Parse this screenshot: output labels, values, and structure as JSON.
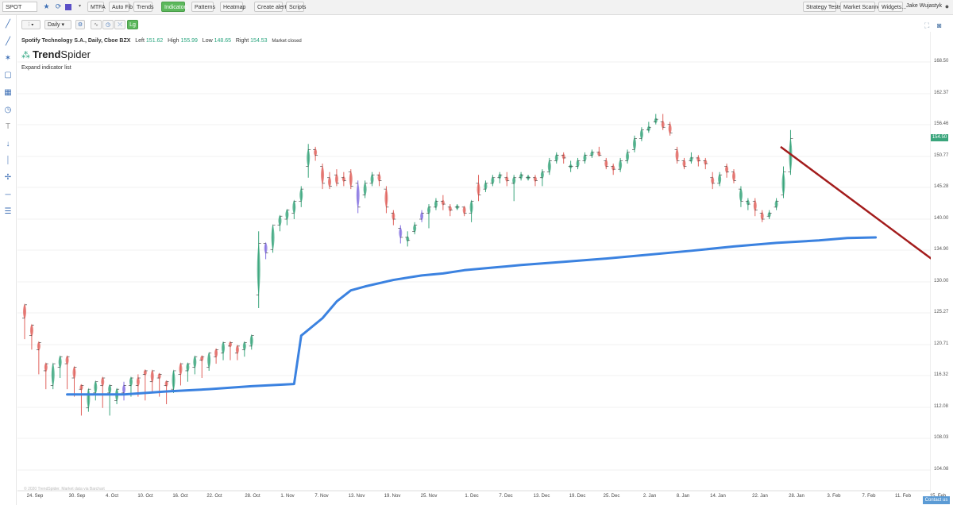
{
  "toolbar": {
    "symbol": "SPOT",
    "buttons": [
      "MTFA",
      "Auto Fib",
      "Trends",
      "Indicators",
      "Patterns",
      "Heatmap",
      "Create alert",
      "Scripts"
    ],
    "active": "Indicators",
    "right_buttons": [
      "Strategy Tester",
      "Market Scanner",
      "Widgets..."
    ],
    "user": "Jake Wujastyk"
  },
  "chart_controls": {
    "interval": "Daily"
  },
  "header": {
    "name": "Spotify Technology S.A., Daily, Cboe BZX",
    "left_label": "Left",
    "left": "151.62",
    "high_label": "High",
    "high": "155.99",
    "low_label": "Low",
    "low": "148.65",
    "right_label": "Right",
    "right": "154.53",
    "status": "Market closed"
  },
  "logo": {
    "trend": "Trend",
    "spider": "Spider"
  },
  "expand_label": "Expand indicator list",
  "price_tag": "154.50",
  "contact": "Contact us",
  "copyright": "© 2020 TrendSpider. Market data via Barchart",
  "colors": {
    "up": "#3aa57c",
    "down": "#e0635d",
    "neutral": "#8470e0",
    "ma": "#3b82e0",
    "trend": "#a31c1c"
  },
  "chart_data": {
    "type": "candlestick",
    "y_ticks": [
      "168.50",
      "162.37",
      "156.46",
      "150.77",
      "145.28",
      "140.00",
      "134.90",
      "130.00",
      "125.27",
      "120.71",
      "116.32",
      "112.08",
      "108.03",
      "104.08"
    ],
    "x_ticks": [
      "24. Sep",
      "30. Sep",
      "4. Oct",
      "10. Oct",
      "16. Oct",
      "22. Oct",
      "28. Oct",
      "1. Nov",
      "7. Nov",
      "13. Nov",
      "19. Nov",
      "25. Nov",
      "1. Dec",
      "7. Dec",
      "13. Dec",
      "19. Dec",
      "25. Dec",
      "2. Jan",
      "8. Jan",
      "14. Jan",
      "22. Jan",
      "28. Jan",
      "3. Feb",
      "7. Feb",
      "11. Feb",
      "15. Feb"
    ],
    "candles": [
      [
        124.5,
        126.5,
        122,
        121.5,
        "d"
      ],
      [
        122,
        123.5,
        120.5,
        120,
        "d"
      ],
      [
        120,
        121,
        117,
        116.5,
        "d"
      ],
      [
        117,
        118,
        115,
        114.5,
        "d"
      ],
      [
        115,
        118,
        117.5,
        114.5,
        "u"
      ],
      [
        117.5,
        119,
        118,
        116,
        "u"
      ],
      [
        118,
        119,
        116,
        114.5,
        "d"
      ],
      [
        116,
        117.5,
        114,
        113.5,
        "d"
      ],
      [
        114.5,
        115,
        112,
        111,
        "d"
      ],
      [
        112,
        114.5,
        114,
        111.5,
        "u"
      ],
      [
        114,
        115.5,
        115,
        113,
        "u"
      ],
      [
        115,
        116,
        114,
        112,
        "d"
      ],
      [
        114,
        115,
        113,
        111,
        "u"
      ],
      [
        113,
        114.5,
        114,
        112.5,
        "u"
      ],
      [
        114,
        115,
        115.5,
        113,
        "n"
      ],
      [
        115,
        116,
        115,
        113.5,
        "u"
      ],
      [
        115,
        116,
        116.5,
        113.5,
        "d"
      ],
      [
        116.5,
        117,
        115.5,
        113,
        "d"
      ],
      [
        115.5,
        117,
        116,
        114,
        "d"
      ],
      [
        116,
        116.5,
        115,
        113.5,
        "d"
      ],
      [
        115,
        115.5,
        113,
        112.5,
        "d"
      ],
      [
        114.5,
        117,
        116.5,
        114,
        "u"
      ],
      [
        116.5,
        118,
        117,
        115,
        "d"
      ],
      [
        117,
        118,
        117.5,
        115.5,
        "u"
      ],
      [
        117.5,
        119,
        118.5,
        116.5,
        "u"
      ],
      [
        118.5,
        119,
        117.5,
        116,
        "d"
      ],
      [
        117.5,
        119.5,
        119,
        117,
        "u"
      ],
      [
        119,
        120,
        119.5,
        118,
        "d"
      ],
      [
        119.5,
        121,
        120.5,
        118.5,
        "u"
      ],
      [
        120.5,
        121,
        119.5,
        118.5,
        "d"
      ],
      [
        119.5,
        120.5,
        120,
        118.5,
        "d"
      ],
      [
        120,
        121,
        120.5,
        119,
        "u"
      ],
      [
        120.5,
        122,
        121.5,
        120,
        "u"
      ],
      [
        128,
        136,
        138,
        126,
        "u"
      ],
      [
        136,
        134.5,
        135.5,
        133.5,
        "n"
      ],
      [
        135,
        139,
        138.5,
        134.5,
        "u"
      ],
      [
        139,
        140.5,
        140,
        138,
        "u"
      ],
      [
        140,
        141.5,
        141,
        139,
        "u"
      ],
      [
        141,
        143,
        142.5,
        140,
        "u"
      ],
      [
        143,
        145,
        145.5,
        142,
        "u"
      ],
      [
        149,
        152,
        153,
        147,
        "u"
      ],
      [
        152,
        151,
        152.5,
        150,
        "d"
      ],
      [
        149,
        146,
        149.5,
        145,
        "d"
      ],
      [
        147,
        145.5,
        148,
        145,
        "d"
      ],
      [
        147.5,
        146,
        148.5,
        145.5,
        "d"
      ],
      [
        147,
        146.5,
        148,
        145.5,
        "d"
      ],
      [
        148,
        145.5,
        148.5,
        145,
        "d"
      ],
      [
        146,
        142,
        146.5,
        141,
        "n"
      ],
      [
        144,
        146,
        146.5,
        143.5,
        "u"
      ],
      [
        146,
        147.5,
        148,
        145.5,
        "u"
      ],
      [
        147.5,
        146.5,
        148,
        145.5,
        "d"
      ],
      [
        145,
        142,
        145.5,
        141,
        "d"
      ],
      [
        141,
        140,
        141.5,
        139,
        "d"
      ],
      [
        138.5,
        137,
        139,
        136,
        "n"
      ],
      [
        137,
        136.5,
        138,
        135.5,
        "u"
      ],
      [
        138,
        139,
        139.5,
        137.5,
        "u"
      ],
      [
        140,
        141,
        141.5,
        139.5,
        "n"
      ],
      [
        141,
        142,
        142.5,
        138.5,
        "u"
      ],
      [
        142,
        143,
        143.5,
        141.5,
        "u"
      ],
      [
        143,
        142.5,
        144,
        141.5,
        "d"
      ],
      [
        142,
        141.5,
        142.5,
        140.5,
        "d"
      ],
      [
        142,
        142,
        142.5,
        141.5,
        "u"
      ],
      [
        142,
        141,
        142,
        140.5,
        "d"
      ],
      [
        141,
        143,
        143,
        139.5,
        "u"
      ],
      [
        146,
        144,
        147.5,
        143,
        "d"
      ],
      [
        145,
        146,
        146.5,
        144.5,
        "u"
      ],
      [
        146,
        147,
        147.5,
        145.5,
        "u"
      ],
      [
        147,
        147.5,
        148,
        146,
        "u"
      ],
      [
        147,
        146.5,
        148,
        145.5,
        "d"
      ],
      [
        146,
        147,
        147.5,
        143,
        "u"
      ],
      [
        147,
        147.5,
        148,
        146.5,
        "u"
      ],
      [
        147,
        147,
        147.5,
        146.5,
        "u"
      ],
      [
        147,
        146.5,
        147.5,
        145.5,
        "d"
      ],
      [
        147,
        148,
        148.5,
        145.5,
        "u"
      ],
      [
        148,
        150,
        150.5,
        147.5,
        "u"
      ],
      [
        150,
        151,
        151.5,
        149.5,
        "u"
      ],
      [
        151,
        150.5,
        151.5,
        149.5,
        "d"
      ],
      [
        149,
        149,
        150,
        148,
        "u"
      ],
      [
        149,
        150,
        150.5,
        148.5,
        "u"
      ],
      [
        150,
        151,
        151.5,
        149.5,
        "u"
      ],
      [
        151,
        151.5,
        152,
        150.5,
        "u"
      ],
      [
        151.5,
        151,
        152.5,
        151,
        "d"
      ],
      [
        150,
        149,
        150.5,
        148.5,
        "d"
      ],
      [
        149,
        148.5,
        149.5,
        147.5,
        "d"
      ],
      [
        148.5,
        150,
        150.5,
        148,
        "u"
      ],
      [
        150,
        151.5,
        152,
        149.5,
        "u"
      ],
      [
        152,
        154,
        154.5,
        151.5,
        "u"
      ],
      [
        154,
        155.5,
        156,
        153.5,
        "u"
      ],
      [
        155.5,
        156,
        157,
        155,
        "u"
      ],
      [
        157,
        157.5,
        158.5,
        156.5,
        "u"
      ],
      [
        157,
        156,
        158.5,
        155.5,
        "d"
      ],
      [
        156.5,
        155,
        157,
        154.5,
        "d"
      ],
      [
        152,
        150,
        152.5,
        149.5,
        "d"
      ],
      [
        150,
        149,
        150.5,
        148.5,
        "d"
      ],
      [
        150,
        150.5,
        151.5,
        149.5,
        "u"
      ],
      [
        150.5,
        150,
        151,
        149,
        "d"
      ],
      [
        150,
        149.5,
        150.5,
        148.5,
        "d"
      ],
      [
        147,
        146,
        148,
        145,
        "d"
      ],
      [
        146,
        147.5,
        148,
        145.5,
        "u"
      ],
      [
        149,
        148,
        149.5,
        147,
        "d"
      ],
      [
        148,
        146.5,
        148.5,
        146,
        "d"
      ],
      [
        145,
        143,
        145.5,
        142,
        "u"
      ],
      [
        143,
        142.5,
        143.5,
        141.5,
        "u"
      ],
      [
        143,
        141.5,
        143.5,
        140.5,
        "d"
      ],
      [
        141,
        140,
        141.5,
        139.5,
        "d"
      ],
      [
        140.5,
        141,
        141.5,
        140,
        "u"
      ],
      [
        142,
        143,
        143.5,
        141.5,
        "u"
      ],
      [
        144,
        148,
        149,
        143.5,
        "u"
      ],
      [
        148,
        154,
        155.5,
        147.5,
        "u"
      ]
    ],
    "ma": [
      [
        0,
        113.8
      ],
      [
        8,
        113.8
      ],
      [
        14,
        114.2
      ],
      [
        20,
        114.5
      ],
      [
        26,
        114.9
      ],
      [
        32,
        115.2
      ],
      [
        33,
        122
      ],
      [
        36,
        124.5
      ],
      [
        38,
        127
      ],
      [
        40,
        128.7
      ],
      [
        42,
        129.3
      ],
      [
        46,
        130.3
      ],
      [
        50,
        131
      ],
      [
        53,
        131.3
      ],
      [
        56,
        131.8
      ],
      [
        60,
        132.2
      ],
      [
        64,
        132.6
      ],
      [
        70,
        133.1
      ],
      [
        76,
        133.6
      ],
      [
        82,
        134.2
      ],
      [
        88,
        134.8
      ],
      [
        94,
        135.5
      ],
      [
        100,
        136.1
      ],
      [
        106,
        136.5
      ],
      [
        110,
        136.9
      ],
      [
        114,
        137
      ]
    ],
    "trend_line": {
      "from": [
        101,
        152.5
      ],
      "to": [
        122,
        132
      ]
    },
    "price_range": [
      101.5,
      171
    ]
  }
}
